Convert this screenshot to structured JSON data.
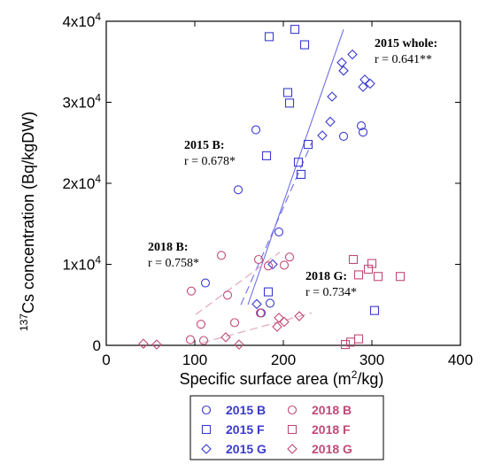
{
  "chart_data": {
    "type": "scatter",
    "x_axis": {
      "title_main": "Specific surface area (m",
      "title_sup": "2",
      "title_end": "/kg)",
      "range": [
        0,
        400
      ],
      "ticks": [
        0,
        100,
        200,
        300,
        400
      ]
    },
    "y_axis": {
      "title_sup": "137",
      "title_main": "Cs concentration (Bq/kgDW)",
      "range": [
        0,
        40000
      ],
      "ticks": [
        {
          "value": 0,
          "base": "0",
          "exp": ""
        },
        {
          "value": 10000,
          "base": "1x10",
          "exp": "4"
        },
        {
          "value": 20000,
          "base": "2x10",
          "exp": "4"
        },
        {
          "value": 30000,
          "base": "3x10",
          "exp": "4"
        },
        {
          "value": 40000,
          "base": "4x10",
          "exp": "4"
        }
      ]
    },
    "grid": false,
    "legend_position": "bottom-center",
    "series": [
      {
        "name": "2015 B",
        "marker": "circle",
        "color": "#3a3ad0",
        "points": [
          [
            149,
            19200
          ],
          [
            169,
            26600
          ],
          [
            185,
            5200
          ],
          [
            175,
            4000
          ],
          [
            195,
            14000
          ],
          [
            112,
            7700
          ],
          [
            288,
            27100
          ],
          [
            268,
            25800
          ],
          [
            290,
            26300
          ]
        ]
      },
      {
        "name": "2015 F",
        "marker": "square",
        "color": "#3a3ad0",
        "points": [
          [
            213,
            39000
          ],
          [
            184,
            38100
          ],
          [
            224,
            37100
          ],
          [
            205,
            31200
          ],
          [
            207,
            29900
          ],
          [
            228,
            24800
          ],
          [
            181,
            23400
          ],
          [
            217,
            22600
          ],
          [
            220,
            21100
          ],
          [
            183,
            6600
          ],
          [
            303,
            4300
          ]
        ]
      },
      {
        "name": "2015 G",
        "marker": "diamond",
        "color": "#3a3ad0",
        "points": [
          [
            278,
            35900
          ],
          [
            266,
            34900
          ],
          [
            268,
            33900
          ],
          [
            292,
            32800
          ],
          [
            298,
            32300
          ],
          [
            290,
            31900
          ],
          [
            255,
            30700
          ],
          [
            253,
            27600
          ],
          [
            244,
            25900
          ],
          [
            188,
            10000
          ],
          [
            170,
            5100
          ]
        ]
      },
      {
        "name": "2018 B",
        "marker": "circle",
        "color": "#c04a78",
        "points": [
          [
            130,
            11100
          ],
          [
            172,
            10600
          ],
          [
            207,
            10900
          ],
          [
            201,
            9900
          ],
          [
            183,
            9800
          ],
          [
            96,
            6700
          ],
          [
            137,
            6200
          ],
          [
            107,
            2600
          ],
          [
            145,
            2800
          ],
          [
            95,
            700
          ],
          [
            110,
            600
          ],
          [
            174,
            4000
          ]
        ]
      },
      {
        "name": "2018 F",
        "marker": "square",
        "color": "#c04a78",
        "points": [
          [
            279,
            10600
          ],
          [
            300,
            10100
          ],
          [
            296,
            9400
          ],
          [
            285,
            8700
          ],
          [
            307,
            8500
          ],
          [
            332,
            8500
          ],
          [
            276,
            400
          ],
          [
            270,
            100
          ],
          [
            285,
            800
          ]
        ]
      },
      {
        "name": "2018 G",
        "marker": "diamond",
        "color": "#c04a78",
        "points": [
          [
            42,
            200
          ],
          [
            57,
            100
          ],
          [
            135,
            1000
          ],
          [
            150,
            100
          ],
          [
            195,
            3400
          ],
          [
            201,
            2900
          ],
          [
            218,
            3600
          ],
          [
            193,
            2300
          ]
        ]
      }
    ],
    "fit_lines": [
      {
        "label": "2015 whole",
        "style": "solid",
        "color": "#6f6fe6",
        "from": [
          160,
          5000
        ],
        "to": [
          268,
          39000
        ]
      },
      {
        "label": "2015 B",
        "style": "dashed",
        "color": "#6f6fe6",
        "from": [
          152,
          5000
        ],
        "to": [
          232,
          25000
        ]
      },
      {
        "label": "2018 B",
        "style": "dashed",
        "color": "#e0a0b8",
        "from": [
          101,
          3800
        ],
        "to": [
          196,
          11500
        ]
      },
      {
        "label": "2018 G",
        "style": "dashed",
        "color": "#e0a0b8",
        "from": [
          108,
          300
        ],
        "to": [
          232,
          4000
        ]
      }
    ],
    "annotations": [
      {
        "label": "2015 whole:",
        "stat": "r = 0.641**"
      },
      {
        "label": "2015 B:",
        "stat": "r = 0.678*"
      },
      {
        "label": "2018 B:",
        "stat": "r = 0.758*"
      },
      {
        "label": "2018 G:",
        "stat": "r = 0.734*"
      }
    ]
  }
}
